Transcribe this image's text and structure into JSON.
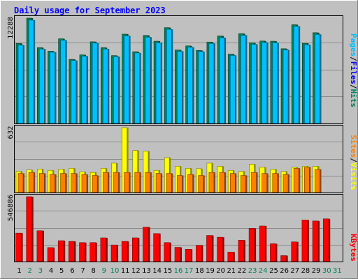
{
  "chart_data": [
    {
      "type": "bar",
      "panel": "pages-files-hits",
      "title": "Daily usage for September 2023",
      "categories": [
        "1",
        "2",
        "3",
        "4",
        "5",
        "6",
        "7",
        "8",
        "9",
        "10",
        "11",
        "12",
        "13",
        "14",
        "15",
        "16",
        "17",
        "18",
        "19",
        "20",
        "21",
        "22",
        "23",
        "24",
        "25",
        "26",
        "27",
        "28",
        "29",
        "30",
        "31"
      ],
      "ylabel_top": "12288",
      "ylim": [
        0,
        12288
      ],
      "legend": [
        "Pages",
        "Files",
        "Hits"
      ],
      "series": [
        {
          "name": "Hits",
          "color": "#00805c",
          "values": [
            9330,
            12288,
            8840,
            8430,
            9880,
            7480,
            8000,
            9530,
            8840,
            7920,
            10420,
            8370,
            10270,
            9600,
            11180,
            8570,
            9050,
            8520,
            9500,
            10210,
            8090,
            10480,
            9420,
            9620,
            9600,
            8720,
            11520,
            9350,
            10590,
            null,
            null
          ]
        },
        {
          "name": "Files",
          "color": "#00c0ff",
          "values": [
            9130,
            12050,
            8690,
            8310,
            9710,
            7340,
            7850,
            9380,
            8690,
            7790,
            10220,
            8230,
            10070,
            9410,
            10980,
            8420,
            8890,
            8390,
            9330,
            10000,
            7940,
            10290,
            9230,
            9450,
            9410,
            8580,
            11330,
            9180,
            10390,
            null,
            null
          ]
        }
      ]
    },
    {
      "type": "bar",
      "panel": "visits-sites",
      "ylabel_top": "632",
      "ylim": [
        0,
        632
      ],
      "legend": [
        "Visits",
        "Sites"
      ],
      "series": [
        {
          "name": "Visits",
          "color": "#ffff00",
          "values": [
            206,
            220,
            228,
            216,
            226,
            236,
            202,
            196,
            236,
            286,
            632,
            410,
            402,
            216,
            340,
            256,
            236,
            232,
            286,
            256,
            216,
            206,
            276,
            246,
            226,
            206,
            246,
            256,
            256,
            null,
            null
          ]
        },
        {
          "name": "Sites",
          "color": "#ff8000",
          "values": [
            186,
            196,
            186,
            176,
            186,
            186,
            176,
            166,
            196,
            196,
            196,
            196,
            196,
            186,
            186,
            166,
            176,
            166,
            196,
            196,
            186,
            166,
            196,
            186,
            186,
            176,
            236,
            246,
            226,
            null,
            null
          ]
        }
      ]
    },
    {
      "type": "bar",
      "panel": "kbytes",
      "ylabel_top": "546886",
      "ylim": [
        0,
        546886
      ],
      "legend": [
        "KBytes"
      ],
      "series": [
        {
          "name": "KBytes",
          "color": "#ff0000",
          "values": [
            240000,
            546886,
            260000,
            118000,
            176000,
            170000,
            160000,
            160000,
            200000,
            140000,
            170000,
            200000,
            290000,
            236000,
            160000,
            120000,
            104000,
            136000,
            220000,
            205000,
            80000,
            180000,
            280000,
            300000,
            150000,
            50000,
            166000,
            350000,
            342000,
            360000,
            null
          ]
        }
      ],
      "xlabels": [
        "1",
        "2",
        "3",
        "4",
        "5",
        "6",
        "7",
        "8",
        "9",
        "10",
        "11",
        "12",
        "13",
        "14",
        "15",
        "16",
        "17",
        "18",
        "19",
        "20",
        "21",
        "22",
        "23",
        "24",
        "25",
        "26",
        "27",
        "28",
        "29",
        "30",
        "31"
      ],
      "weekend_days": [
        2,
        3,
        9,
        10,
        16,
        17,
        23,
        24,
        30,
        31
      ]
    }
  ],
  "colors": {
    "frame_bg": "#c0c0c0",
    "plot_bg": "#c0c0c0",
    "grid": "#8b8b8b",
    "title": "#0000ff",
    "weekday_label": "#000000",
    "weekend_label": "#00805c",
    "pages_label": "#00c0ff",
    "files_label": "#0000ff",
    "hits_label": "#00805c",
    "visits_label": "#ffff00",
    "sites_label": "#ff8000",
    "kbytes_label": "#ff0000"
  },
  "legend_text": {
    "pages": "Pages",
    "files": "Files",
    "hits": "Hits",
    "visits": "Visits",
    "sites": "Sites",
    "kbytes": "KBytes",
    "sep": "/"
  }
}
